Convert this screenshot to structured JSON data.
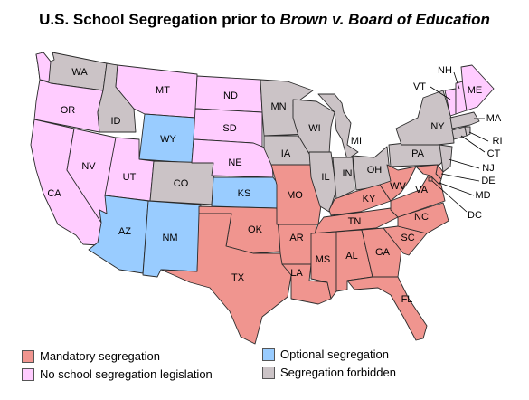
{
  "title": {
    "prefix": "U.S. School Segregation prior to ",
    "italic": "Brown v. Board of Education"
  },
  "categories": {
    "mandatory": {
      "label": "Mandatory segregation",
      "color": "#f0958f"
    },
    "none": {
      "label": "No school segregation legislation",
      "color": "#ffccff"
    },
    "optional": {
      "label": "Optional segregation",
      "color": "#99ccff"
    },
    "forbidden": {
      "label": "Segregation forbidden",
      "color": "#cbc3c6"
    }
  },
  "states": {
    "WA": "none_forbidden",
    "OR": "none",
    "CA": "none",
    "NV": "none",
    "ID": "forbidden",
    "MT": "none",
    "WY": "optional",
    "UT": "none",
    "AZ": "optional",
    "CO": "forbidden",
    "NM": "optional",
    "ND": "none",
    "SD": "none",
    "NE": "none",
    "KS": "optional",
    "OK": "mandatory",
    "TX": "mandatory",
    "MN": "forbidden",
    "IA": "forbidden",
    "MO": "mandatory",
    "AR": "mandatory",
    "LA": "mandatory",
    "WI": "forbidden",
    "IL": "forbidden",
    "MI": "forbidden",
    "IN": "forbidden",
    "OH": "forbidden",
    "KY": "mandatory",
    "TN": "mandatory",
    "MS": "mandatory",
    "AL": "mandatory",
    "GA": "mandatory",
    "FL": "mandatory",
    "SC": "mandatory",
    "NC": "mandatory",
    "VA": "mandatory",
    "WV": "mandatory",
    "PA": "forbidden",
    "NY": "forbidden",
    "NJ": "forbidden",
    "DE": "mandatory",
    "MD": "mandatory",
    "DC": "mandatory",
    "CT": "forbidden",
    "RI": "forbidden",
    "MA": "forbidden",
    "VT": "none",
    "NH": "none",
    "ME": "none"
  },
  "labels": [
    "WA",
    "OR",
    "CA",
    "NV",
    "ID",
    "MT",
    "WY",
    "UT",
    "AZ",
    "CO",
    "NM",
    "ND",
    "SD",
    "NE",
    "KS",
    "OK",
    "TX",
    "MN",
    "IA",
    "MO",
    "AR",
    "LA",
    "WI",
    "IL",
    "MI",
    "IN",
    "OH",
    "KY",
    "TN",
    "MS",
    "AL",
    "GA",
    "FL",
    "SC",
    "NC",
    "VA",
    "WV",
    "PA",
    "NY",
    "NJ",
    "DE",
    "MD",
    "DC",
    "CT",
    "RI",
    "MA",
    "VT",
    "NH",
    "ME"
  ]
}
